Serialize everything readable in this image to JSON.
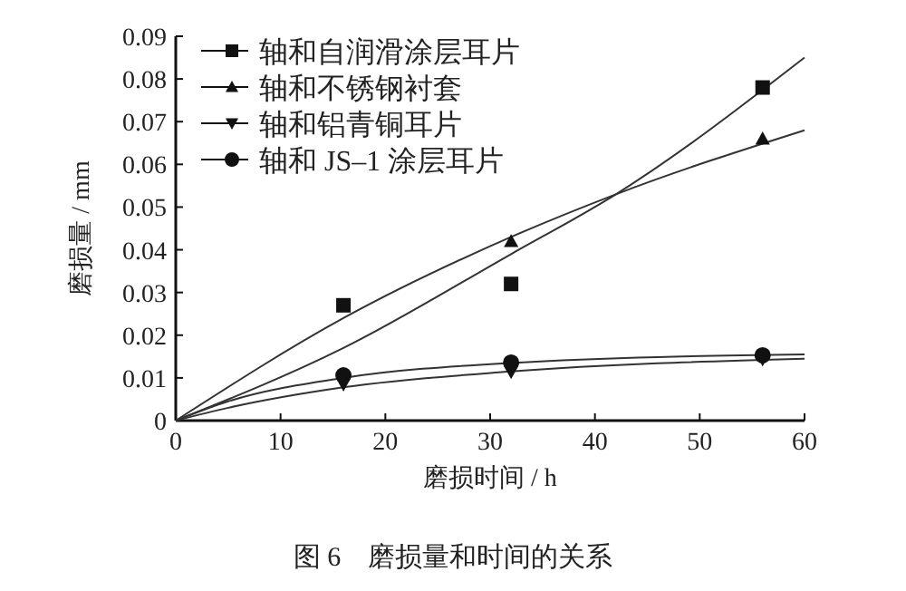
{
  "chart_data": {
    "type": "scatter",
    "xlabel": "磨损时间 / h",
    "ylabel": "磨损量 / mm",
    "annotations": [
      "图 6　磨损量和时间的关系"
    ],
    "xlim": [
      0,
      60
    ],
    "ylim": [
      0,
      0.09
    ],
    "xticks": [
      0,
      10,
      20,
      30,
      40,
      50,
      60
    ],
    "yticks": [
      0,
      0.01,
      0.02,
      0.03,
      0.04,
      0.05,
      0.06,
      0.07,
      0.08,
      0.09
    ],
    "grid": false,
    "legend": "top left",
    "series": [
      {
        "name": "轴和自润滑涂层耳片",
        "marker": "square",
        "color": "#111111",
        "x": [
          16,
          32,
          56
        ],
        "values": [
          0.027,
          0.032,
          0.078
        ]
      },
      {
        "name": "轴和不锈钢衬套",
        "marker": "triangle",
        "color": "#111111",
        "x": [
          32,
          56
        ],
        "values": [
          0.042,
          0.066
        ]
      },
      {
        "name": "轴和铝青铜耳片",
        "marker": "triangle-down",
        "color": "#111111",
        "x": [
          16,
          32,
          56
        ],
        "values": [
          0.0085,
          0.0114,
          0.0144
        ]
      },
      {
        "name": "轴和 JS–1 涂层耳片",
        "marker": "circle",
        "color": "#111111",
        "x": [
          16,
          32,
          56
        ],
        "values": [
          0.0106,
          0.0136,
          0.0153
        ]
      },
      {
        "type": "line",
        "marker": "none",
        "color": "#333333",
        "x": [
          0,
          16,
          32,
          42,
          60
        ],
        "values": [
          0,
          0.017,
          0.039,
          0.053,
          0.085
        ]
      },
      {
        "type": "line",
        "marker": "none",
        "color": "#333333",
        "x": [
          0,
          16,
          32,
          42,
          60
        ],
        "values": [
          0,
          0.024,
          0.043,
          0.053,
          0.068
        ]
      },
      {
        "type": "line",
        "marker": "none",
        "color": "#333333",
        "x": [
          0,
          5,
          16,
          32,
          60
        ],
        "values": [
          0,
          0.003,
          0.0078,
          0.0115,
          0.0145
        ]
      },
      {
        "type": "line",
        "marker": "none",
        "color": "#333333",
        "x": [
          0,
          5,
          16,
          32,
          60
        ],
        "values": [
          0,
          0.0045,
          0.01,
          0.0135,
          0.0155
        ]
      }
    ]
  }
}
